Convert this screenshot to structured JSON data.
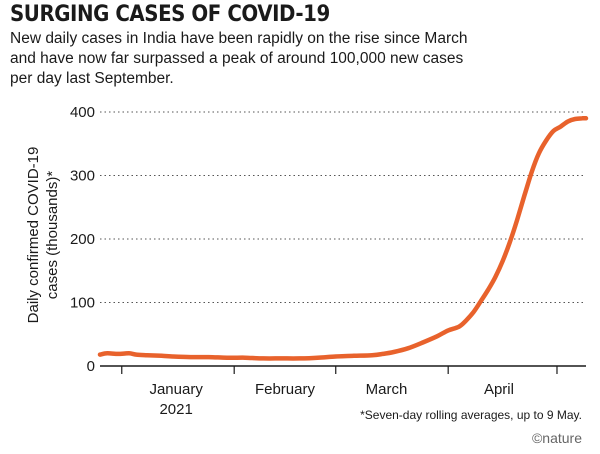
{
  "title": "SURGING CASES OF COVID-19",
  "subtitle": "New daily cases in India have been rapidly on the rise since March and have now far surpassed a peak of around 100,000 new cases per day last September.",
  "footnote": "*Seven-day rolling averages, up to 9 May.",
  "credit": "©nature",
  "colors": {
    "line": "#e8622c",
    "grid": "#555555"
  },
  "chart_data": {
    "type": "line",
    "title": "SURGING CASES OF COVID-19",
    "ylabel": "Daily confirmed COVID-19 cases (thousands)*",
    "ylim": [
      0,
      400
    ],
    "yticks": [
      0,
      100,
      200,
      300,
      400
    ],
    "xlabels": [
      {
        "day": 16,
        "text": "January",
        "sub": "2021"
      },
      {
        "day": 46,
        "text": "February",
        "sub": ""
      },
      {
        "day": 74,
        "text": "March",
        "sub": ""
      },
      {
        "day": 105,
        "text": "April",
        "sub": ""
      }
    ],
    "xticks": [
      1,
      32,
      60,
      91,
      121
    ],
    "x_domain": [
      -5,
      129
    ],
    "grid": "horizontal dotted",
    "series": [
      {
        "name": "",
        "points": [
          [
            -5,
            18
          ],
          [
            -3,
            20
          ],
          [
            0,
            19
          ],
          [
            3,
            20
          ],
          [
            5,
            18
          ],
          [
            8,
            17
          ],
          [
            12,
            16
          ],
          [
            15,
            15
          ],
          [
            20,
            14
          ],
          [
            25,
            14
          ],
          [
            30,
            13
          ],
          [
            35,
            13
          ],
          [
            40,
            12
          ],
          [
            45,
            12
          ],
          [
            50,
            12
          ],
          [
            55,
            13
          ],
          [
            60,
            15
          ],
          [
            65,
            16
          ],
          [
            70,
            17
          ],
          [
            73,
            19
          ],
          [
            76,
            22
          ],
          [
            80,
            28
          ],
          [
            84,
            37
          ],
          [
            88,
            47
          ],
          [
            91,
            56
          ],
          [
            94,
            62
          ],
          [
            96,
            72
          ],
          [
            98,
            85
          ],
          [
            100,
            102
          ],
          [
            102,
            120
          ],
          [
            104,
            140
          ],
          [
            106,
            165
          ],
          [
            108,
            195
          ],
          [
            110,
            230
          ],
          [
            112,
            268
          ],
          [
            114,
            305
          ],
          [
            116,
            335
          ],
          [
            118,
            355
          ],
          [
            120,
            370
          ],
          [
            122,
            377
          ],
          [
            124,
            385
          ],
          [
            126,
            389
          ],
          [
            128,
            390
          ],
          [
            129,
            390
          ]
        ]
      }
    ]
  }
}
